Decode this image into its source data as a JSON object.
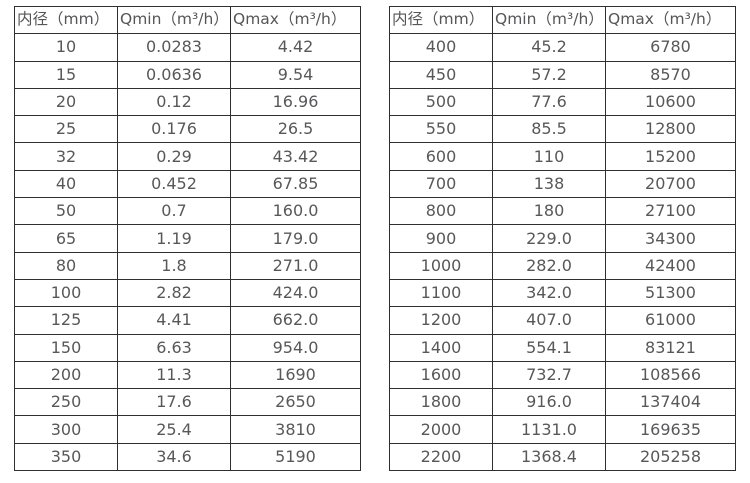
{
  "page": {
    "background_color": "#ffffff",
    "text_color": "#58585a",
    "border_color": "#2f2f2f"
  },
  "tables": [
    {
      "name": "flow-rate-table-small-diameters",
      "headers": [
        "内径（mm）",
        "Qmin（m³/h）",
        "Qmax（m³/h）"
      ],
      "rows": [
        [
          "10",
          "0.0283",
          "4.42"
        ],
        [
          "15",
          "0.0636",
          "9.54"
        ],
        [
          "20",
          "0.12",
          "16.96"
        ],
        [
          "25",
          "0.176",
          "26.5"
        ],
        [
          "32",
          "0.29",
          "43.42"
        ],
        [
          "40",
          "0.452",
          "67.85"
        ],
        [
          "50",
          "0.7",
          "160.0"
        ],
        [
          "65",
          "1.19",
          "179.0"
        ],
        [
          "80",
          "1.8",
          "271.0"
        ],
        [
          "100",
          "2.82",
          "424.0"
        ],
        [
          "125",
          "4.41",
          "662.0"
        ],
        [
          "150",
          "6.63",
          "954.0"
        ],
        [
          "200",
          "11.3",
          "1690"
        ],
        [
          "250",
          "17.6",
          "2650"
        ],
        [
          "300",
          "25.4",
          "3810"
        ],
        [
          "350",
          "34.6",
          "5190"
        ]
      ]
    },
    {
      "name": "flow-rate-table-large-diameters",
      "headers": [
        "内径（mm）",
        "Qmin（m³/h）",
        "Qmax（m³/h）"
      ],
      "rows": [
        [
          "400",
          "45.2",
          "6780"
        ],
        [
          "450",
          "57.2",
          "8570"
        ],
        [
          "500",
          "77.6",
          "10600"
        ],
        [
          "550",
          "85.5",
          "12800"
        ],
        [
          "600",
          "110",
          "15200"
        ],
        [
          "700",
          "138",
          "20700"
        ],
        [
          "800",
          "180",
          "27100"
        ],
        [
          "900",
          "229.0",
          "34300"
        ],
        [
          "1000",
          "282.0",
          "42400"
        ],
        [
          "1100",
          "342.0",
          "51300"
        ],
        [
          "1200",
          "407.0",
          "61000"
        ],
        [
          "1400",
          "554.1",
          "83121"
        ],
        [
          "1600",
          "732.7",
          "108566"
        ],
        [
          "1800",
          "916.0",
          "137404"
        ],
        [
          "2000",
          "1131.0",
          "169635"
        ],
        [
          "2200",
          "1368.4",
          "205258"
        ]
      ]
    }
  ]
}
